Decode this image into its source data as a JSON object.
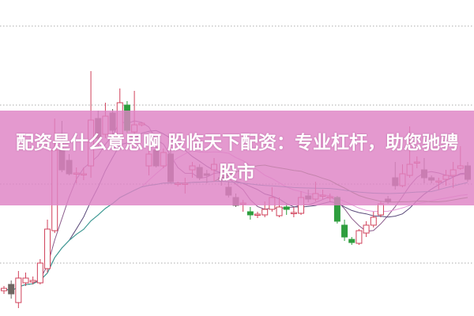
{
  "banner": {
    "title": "配资是什么意思啊 股临天下配资：专业杠杆，助您驰骋股市",
    "color": "#de82c4"
  },
  "chart_data": {
    "type": "candlestick",
    "title": "",
    "xlabel": "",
    "ylabel": "",
    "ylim": [
      0,
      40
    ],
    "grid": true,
    "gridlines": [
      6.7,
      16.7,
      26.7,
      36.7
    ],
    "colors": {
      "up": "#d0405a",
      "down": "#6e6662",
      "down_alt": "#2e9e3e",
      "grid": "#aaaaaa"
    },
    "moving_averages": [
      {
        "period": 5,
        "color": "#8a5a8a"
      },
      {
        "period": 10,
        "color": "#5a4a7a"
      },
      {
        "period": 20,
        "color": "#e49ad8"
      },
      {
        "period": 30,
        "color": "#4f8a40"
      },
      {
        "period": 60,
        "color": "#3aa0a0"
      }
    ],
    "candles": [
      {
        "o": 3.2,
        "h": 3.8,
        "l": 2.8,
        "c": 3.5
      },
      {
        "o": 4.0,
        "h": 4.5,
        "l": 2.2,
        "c": 2.8
      },
      {
        "o": 1.7,
        "h": 5.7,
        "l": 1.0,
        "c": 4.8
      },
      {
        "o": 4.2,
        "h": 5.5,
        "l": 3.8,
        "c": 4.8
      },
      {
        "o": 4.3,
        "h": 5.0,
        "l": 4.0,
        "c": 4.5
      },
      {
        "o": 4.2,
        "h": 7.2,
        "l": 4.0,
        "c": 6.7
      },
      {
        "o": 6.0,
        "h": 12.2,
        "l": 5.5,
        "c": 11.0
      },
      {
        "o": 10.8,
        "h": 25.0,
        "l": 10.5,
        "c": 21.0
      },
      {
        "o": 21.0,
        "h": 24.7,
        "l": 18.2,
        "c": 18.5
      },
      {
        "o": 19.7,
        "h": 20.5,
        "l": 17.8,
        "c": 18.0
      },
      {
        "o": 18.0,
        "h": 18.8,
        "l": 16.8,
        "c": 18.1
      },
      {
        "o": 17.9,
        "h": 18.8,
        "l": 17.2,
        "c": 18.0
      },
      {
        "o": 19.0,
        "h": 31.0,
        "l": 17.5,
        "c": 24.8
      },
      {
        "o": 25.0,
        "h": 26.0,
        "l": 21.5,
        "c": 22.5
      },
      {
        "o": 23.0,
        "h": 27.0,
        "l": 22.5,
        "c": 25.3
      },
      {
        "o": 25.7,
        "h": 26.2,
        "l": 23.0,
        "c": 23.5
      },
      {
        "o": 22.5,
        "h": 28.8,
        "l": 21.5,
        "c": 27.0
      },
      {
        "o": 26.7,
        "h": 27.2,
        "l": 23.2,
        "c": 23.5,
        "alt": true
      },
      {
        "o": 23.3,
        "h": 28.5,
        "l": 22.5,
        "c": 24.2
      },
      {
        "o": 24.2,
        "h": 24.5,
        "l": 24.0,
        "c": 24.4
      },
      {
        "o": 19.0,
        "h": 21.5,
        "l": 17.8,
        "c": 20.5
      },
      {
        "o": 21.0,
        "h": 21.5,
        "l": 18.8,
        "c": 19.0
      },
      {
        "o": 19.0,
        "h": 21.2,
        "l": 18.7,
        "c": 20.7
      },
      {
        "o": 20.5,
        "h": 21.0,
        "l": 16.8,
        "c": 17.0
      },
      {
        "o": 16.7,
        "h": 17.0,
        "l": 16.4,
        "c": 16.8
      },
      {
        "o": 16.7,
        "h": 17.5,
        "l": 15.5,
        "c": 16.8
      },
      {
        "o": 18.5,
        "h": 19.5,
        "l": 17.5,
        "c": 19.0
      },
      {
        "o": 18.8,
        "h": 19.2,
        "l": 17.2,
        "c": 17.5
      },
      {
        "o": 18.0,
        "h": 18.5,
        "l": 16.8,
        "c": 17.8
      },
      {
        "o": 18.5,
        "h": 20.0,
        "l": 17.0,
        "c": 19.2
      },
      {
        "o": 17.5,
        "h": 18.0,
        "l": 16.5,
        "c": 17.2
      },
      {
        "o": 16.3,
        "h": 17.0,
        "l": 15.0,
        "c": 15.3
      },
      {
        "o": 15.0,
        "h": 15.5,
        "l": 13.8,
        "c": 14.0
      },
      {
        "o": 14.2,
        "h": 14.7,
        "l": 13.2,
        "c": 14.3
      },
      {
        "o": 13.2,
        "h": 13.8,
        "l": 12.2,
        "c": 12.8,
        "alt": true
      },
      {
        "o": 12.8,
        "h": 13.2,
        "l": 12.4,
        "c": 12.9
      },
      {
        "o": 12.8,
        "h": 14.5,
        "l": 12.5,
        "c": 13.5
      },
      {
        "o": 13.5,
        "h": 16.3,
        "l": 13.2,
        "c": 15.0
      },
      {
        "o": 12.7,
        "h": 15.0,
        "l": 12.5,
        "c": 13.8
      },
      {
        "o": 13.8,
        "h": 14.2,
        "l": 12.8,
        "c": 13.5,
        "alt": true
      },
      {
        "o": 13.0,
        "h": 13.8,
        "l": 12.5,
        "c": 13.1
      },
      {
        "o": 13.0,
        "h": 15.8,
        "l": 12.8,
        "c": 15.0
      },
      {
        "o": 15.2,
        "h": 16.0,
        "l": 14.4,
        "c": 14.8
      },
      {
        "o": 14.8,
        "h": 17.0,
        "l": 14.5,
        "c": 15.5
      },
      {
        "o": 15.2,
        "h": 16.0,
        "l": 14.8,
        "c": 15.3
      },
      {
        "o": 15.0,
        "h": 15.5,
        "l": 14.5,
        "c": 15.1
      },
      {
        "o": 15.0,
        "h": 15.2,
        "l": 11.7,
        "c": 12.0,
        "alt": true
      },
      {
        "o": 11.5,
        "h": 12.2,
        "l": 9.5,
        "c": 10.0,
        "alt": true
      },
      {
        "o": 9.7,
        "h": 10.0,
        "l": 9.0,
        "c": 9.3,
        "alt": true
      },
      {
        "o": 9.2,
        "h": 11.0,
        "l": 9.0,
        "c": 10.8
      },
      {
        "o": 10.5,
        "h": 12.0,
        "l": 10.0,
        "c": 11.5
      },
      {
        "o": 11.5,
        "h": 13.2,
        "l": 11.2,
        "c": 12.5
      },
      {
        "o": 12.8,
        "h": 14.5,
        "l": 12.5,
        "c": 14.2
      },
      {
        "o": 14.8,
        "h": 15.2,
        "l": 14.2,
        "c": 14.5
      },
      {
        "o": 17.5,
        "h": 19.5,
        "l": 16.0,
        "c": 16.5
      },
      {
        "o": 16.5,
        "h": 19.2,
        "l": 16.3,
        "c": 18.0
      },
      {
        "o": 17.8,
        "h": 24.0,
        "l": 17.5,
        "c": 19.2
      },
      {
        "o": 19.4,
        "h": 20.2,
        "l": 18.7,
        "c": 19.5
      },
      {
        "o": 18.5,
        "h": 20.0,
        "l": 16.8,
        "c": 17.5
      },
      {
        "o": 17.5,
        "h": 17.8,
        "l": 16.8,
        "c": 17.2
      },
      {
        "o": 17.0,
        "h": 17.5,
        "l": 16.0,
        "c": 17.1
      },
      {
        "o": 17.3,
        "h": 18.5,
        "l": 16.5,
        "c": 17.8
      },
      {
        "o": 17.8,
        "h": 19.5,
        "l": 16.2,
        "c": 18.5
      },
      {
        "o": 18.7,
        "h": 21.5,
        "l": 18.5,
        "c": 19.0
      },
      {
        "o": 19.0,
        "h": 19.5,
        "l": 17.0,
        "c": 17.3
      }
    ]
  }
}
